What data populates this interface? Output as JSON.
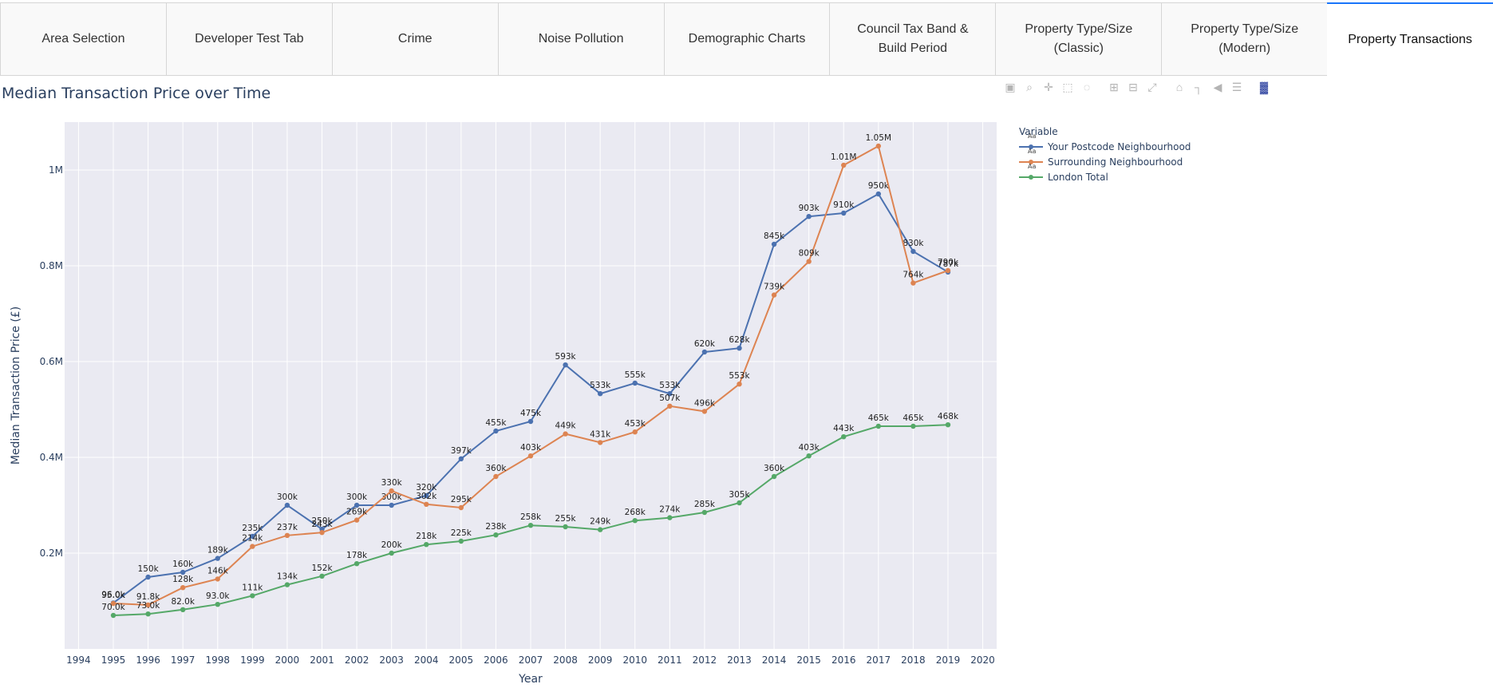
{
  "tabs": [
    {
      "label": "Area Selection",
      "active": false
    },
    {
      "label": "Developer Test Tab",
      "active": false
    },
    {
      "label": "Crime",
      "active": false
    },
    {
      "label": "Noise Pollution",
      "active": false
    },
    {
      "label": "Demographic Charts",
      "active": false
    },
    {
      "label": "Council Tax Band &\nBuild Period",
      "active": false
    },
    {
      "label": "Property Type/Size\n(Classic)",
      "active": false
    },
    {
      "label": "Property Type/Size\n(Modern)",
      "active": false
    },
    {
      "label": "Property Transactions",
      "active": true
    }
  ],
  "modebar": [
    "camera-icon",
    "zoom-icon",
    "pan-icon",
    "box-select-icon",
    "lasso-select-icon",
    "zoom-in-icon",
    "zoom-out-icon",
    "autoscale-icon",
    "reset-axes-icon",
    "spike-lines-icon",
    "hover-closest-icon",
    "hover-compare-icon",
    "plotly-logo-icon"
  ],
  "legend": {
    "title": "Variable",
    "marker_text": "Aa"
  },
  "chart_data": {
    "type": "line",
    "title": "Median Transaction Price over Time",
    "xlabel": "Year",
    "ylabel": "Median Transaction Price (£)",
    "xlim": [
      1993.6,
      2020.4
    ],
    "ylim": [
      0,
      1.1
    ],
    "x_ticks": [
      1994,
      1995,
      1996,
      1997,
      1998,
      1999,
      2000,
      2001,
      2002,
      2003,
      2004,
      2005,
      2006,
      2007,
      2008,
      2009,
      2010,
      2011,
      2012,
      2013,
      2014,
      2015,
      2016,
      2017,
      2018,
      2019,
      2020
    ],
    "y_ticks": [
      0.2,
      0.4,
      0.6,
      0.8,
      1.0
    ],
    "y_tick_labels": [
      "0.2M",
      "0.4M",
      "0.6M",
      "0.8M",
      "1M"
    ],
    "grid": true,
    "legend_position": "top-right",
    "x": [
      1995,
      1996,
      1997,
      1998,
      1999,
      2000,
      2001,
      2002,
      2003,
      2004,
      2005,
      2006,
      2007,
      2008,
      2009,
      2010,
      2011,
      2012,
      2013,
      2014,
      2015,
      2016,
      2017,
      2018,
      2019
    ],
    "series": [
      {
        "name": "Your Postcode Neighbourhood",
        "color": "#4c72b0",
        "values": [
          0.096,
          0.15,
          0.16,
          0.189,
          0.235,
          0.3,
          0.25,
          0.3,
          0.3,
          0.32,
          0.397,
          0.455,
          0.475,
          0.593,
          0.533,
          0.555,
          0.533,
          0.62,
          0.628,
          0.845,
          0.903,
          0.91,
          0.95,
          0.83,
          0.787
        ],
        "labels": [
          "96.0k",
          "150k",
          "160k",
          "189k",
          "235k",
          "300k",
          "250k",
          "300k",
          "300k",
          "320k",
          "397k",
          "455k",
          "475k",
          "593k",
          "533k",
          "555k",
          "533k",
          "620k",
          "628k",
          "845k",
          "903k",
          "910k",
          "950k",
          "830k",
          "787k"
        ]
      },
      {
        "name": "Surrounding Neighbourhood",
        "color": "#dd8452",
        "values": [
          0.095,
          0.0918,
          0.128,
          0.146,
          0.214,
          0.237,
          0.243,
          0.269,
          0.33,
          0.302,
          0.295,
          0.36,
          0.403,
          0.449,
          0.431,
          0.453,
          0.507,
          0.496,
          0.553,
          0.739,
          0.809,
          1.01,
          1.05,
          0.764,
          0.79
        ],
        "labels": [
          "95.0k",
          "91.8k",
          "128k",
          "146k",
          "214k",
          "237k",
          "243k",
          "269k",
          "330k",
          "302k",
          "295k",
          "360k",
          "403k",
          "449k",
          "431k",
          "453k",
          "507k",
          "496k",
          "553k",
          "739k",
          "809k",
          "1.01M",
          "1.05M",
          "764k",
          "790k"
        ]
      },
      {
        "name": "London Total",
        "color": "#55a868",
        "values": [
          0.07,
          0.073,
          0.082,
          0.093,
          0.111,
          0.134,
          0.152,
          0.178,
          0.2,
          0.218,
          0.225,
          0.238,
          0.258,
          0.255,
          0.249,
          0.268,
          0.274,
          0.285,
          0.305,
          0.36,
          0.403,
          0.443,
          0.465,
          0.465,
          0.468
        ],
        "labels": [
          "70.0k",
          "73.0k",
          "82.0k",
          "93.0k",
          "111k",
          "134k",
          "152k",
          "178k",
          "200k",
          "218k",
          "225k",
          "238k",
          "258k",
          "255k",
          "249k",
          "268k",
          "274k",
          "285k",
          "305k",
          "360k",
          "403k",
          "443k",
          "465k",
          "465k",
          "468k"
        ]
      }
    ]
  }
}
